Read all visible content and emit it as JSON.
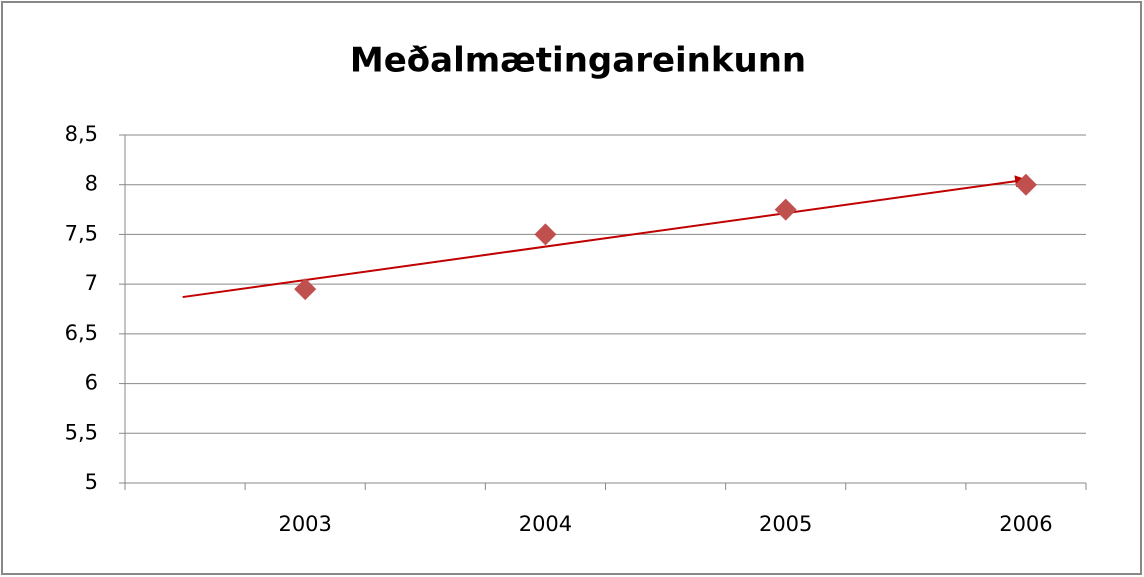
{
  "chart_data": {
    "type": "scatter",
    "title": "Meðalmætingareinkunn",
    "categories": [
      "2003",
      "2004",
      "2005",
      "2006"
    ],
    "values": [
      6.95,
      7.5,
      7.75,
      8.0
    ],
    "color": "#c0504d",
    "trendline": {
      "color": "#c00000",
      "values": [
        6.87,
        8.05
      ]
    },
    "ylim": [
      5,
      8.5
    ],
    "yticks": [
      5,
      {
        "value": 5.5,
        "label": "5,5"
      },
      6,
      {
        "value": 6.5,
        "label": "6,5"
      },
      7,
      {
        "value": 7.5,
        "label": "7,5"
      },
      8,
      {
        "value": 8.5,
        "label": "8,5"
      }
    ],
    "grid": true
  }
}
